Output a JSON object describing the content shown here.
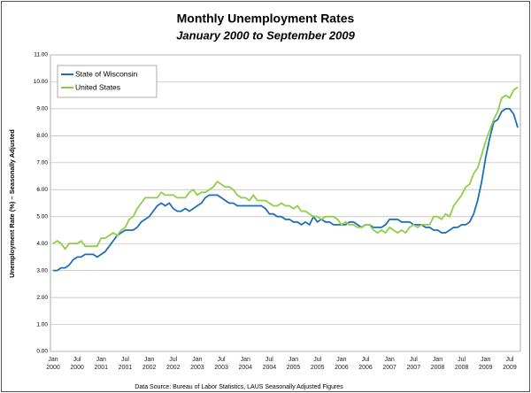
{
  "chart_data": {
    "type": "line",
    "title": "Monthly Unemployment Rates",
    "subtitle": "January 2000 to September 2009",
    "y_label": "Unemployment Rate (%) – Seasonally Adjusted",
    "source": "Data Source:  Bureau of Labor Statistics, LAUS Seasonally Adjusted Figures",
    "legend": "upper left",
    "grid": true,
    "categories": [
      "Jan 2000",
      null,
      null,
      null,
      null,
      null,
      "Jul 2000",
      null,
      null,
      null,
      null,
      null,
      "Jan 2001",
      null,
      null,
      null,
      null,
      null,
      "Jul 2001",
      null,
      null,
      null,
      null,
      null,
      "Jan 2002",
      null,
      null,
      null,
      null,
      null,
      "Jul 2002",
      null,
      null,
      null,
      null,
      null,
      "Jan 2003",
      null,
      null,
      null,
      null,
      null,
      "Jul 2003",
      null,
      null,
      null,
      null,
      null,
      "Jan 2004",
      null,
      null,
      null,
      null,
      null,
      "Jul 2004",
      null,
      null,
      null,
      null,
      null,
      "Jan 2005",
      null,
      null,
      null,
      null,
      null,
      "Jul 2005",
      null,
      null,
      null,
      null,
      null,
      "Jan 2006",
      null,
      null,
      null,
      null,
      null,
      "Jul 2006",
      null,
      null,
      null,
      null,
      null,
      "Jan 2007",
      null,
      null,
      null,
      null,
      null,
      "Jul 2007",
      null,
      null,
      null,
      null,
      null,
      "Jan 2008",
      null,
      null,
      null,
      null,
      null,
      "Jul 2008",
      null,
      null,
      null,
      null,
      null,
      "Jan 2009",
      null,
      null,
      null,
      null,
      null,
      "Jul 2009",
      null,
      null
    ],
    "ylim": [
      0,
      11
    ],
    "yticks": [
      {
        "value": 0,
        "label": "0.00"
      },
      {
        "value": 1,
        "label": "1.00"
      },
      {
        "value": 2,
        "label": "2.00"
      },
      {
        "value": 3,
        "label": "3.00"
      },
      {
        "value": 4,
        "label": "4.00"
      },
      {
        "value": 5,
        "label": "5.00"
      },
      {
        "value": 6,
        "label": "6.00"
      },
      {
        "value": 7,
        "label": "7.00"
      },
      {
        "value": 8,
        "label": "8.00"
      },
      {
        "value": 9,
        "label": "9.00"
      },
      {
        "value": 10,
        "label": "10.00"
      },
      {
        "value": 11,
        "label": "11.00"
      }
    ],
    "series": [
      {
        "name": "State of Wisconsin",
        "color": "#1f6fb5",
        "values": [
          3.0,
          3.0,
          3.1,
          3.1,
          3.2,
          3.4,
          3.5,
          3.5,
          3.6,
          3.6,
          3.6,
          3.5,
          3.6,
          3.7,
          3.9,
          4.1,
          4.3,
          4.4,
          4.5,
          4.5,
          4.5,
          4.6,
          4.8,
          4.9,
          5.0,
          5.2,
          5.4,
          5.5,
          5.4,
          5.5,
          5.3,
          5.2,
          5.2,
          5.3,
          5.2,
          5.3,
          5.4,
          5.5,
          5.7,
          5.8,
          5.8,
          5.8,
          5.7,
          5.6,
          5.5,
          5.5,
          5.4,
          5.4,
          5.4,
          5.4,
          5.4,
          5.4,
          5.4,
          5.3,
          5.1,
          5.1,
          5.0,
          5.0,
          4.9,
          4.9,
          4.8,
          4.8,
          4.7,
          4.8,
          4.7,
          5.0,
          4.8,
          4.9,
          4.8,
          4.8,
          4.7,
          4.7,
          4.7,
          4.7,
          4.8,
          4.8,
          4.7,
          4.6,
          4.7,
          4.7,
          4.6,
          4.6,
          4.6,
          4.7,
          4.9,
          4.9,
          4.9,
          4.8,
          4.8,
          4.8,
          4.7,
          4.7,
          4.7,
          4.6,
          4.6,
          4.5,
          4.5,
          4.4,
          4.4,
          4.5,
          4.6,
          4.6,
          4.7,
          4.7,
          4.8,
          5.1,
          5.6,
          6.3,
          7.2,
          7.9,
          8.5,
          8.6,
          8.9,
          9.0,
          9.0,
          8.8,
          8.3
        ]
      },
      {
        "name": "United States",
        "color": "#8fce4a",
        "values": [
          4.0,
          4.1,
          4.0,
          3.8,
          4.0,
          4.0,
          4.0,
          4.1,
          3.9,
          3.9,
          3.9,
          3.9,
          4.2,
          4.2,
          4.3,
          4.4,
          4.3,
          4.5,
          4.6,
          4.9,
          5.0,
          5.3,
          5.5,
          5.7,
          5.7,
          5.7,
          5.7,
          5.9,
          5.8,
          5.8,
          5.8,
          5.7,
          5.7,
          5.7,
          5.9,
          6.0,
          5.8,
          5.9,
          5.9,
          6.0,
          6.1,
          6.3,
          6.2,
          6.1,
          6.1,
          6.0,
          5.8,
          5.7,
          5.7,
          5.6,
          5.8,
          5.6,
          5.6,
          5.6,
          5.5,
          5.4,
          5.4,
          5.5,
          5.4,
          5.4,
          5.3,
          5.4,
          5.2,
          5.2,
          5.1,
          5.0,
          5.0,
          4.9,
          5.0,
          5.0,
          5.0,
          4.9,
          4.7,
          4.8,
          4.7,
          4.7,
          4.6,
          4.6,
          4.7,
          4.7,
          4.5,
          4.4,
          4.5,
          4.4,
          4.6,
          4.5,
          4.4,
          4.5,
          4.4,
          4.6,
          4.7,
          4.6,
          4.7,
          4.7,
          4.7,
          5.0,
          5.0,
          4.9,
          5.1,
          5.0,
          5.4,
          5.6,
          5.8,
          6.1,
          6.2,
          6.6,
          6.8,
          7.3,
          7.8,
          8.2,
          8.6,
          8.9,
          9.4,
          9.5,
          9.4,
          9.7,
          9.8
        ]
      }
    ]
  }
}
